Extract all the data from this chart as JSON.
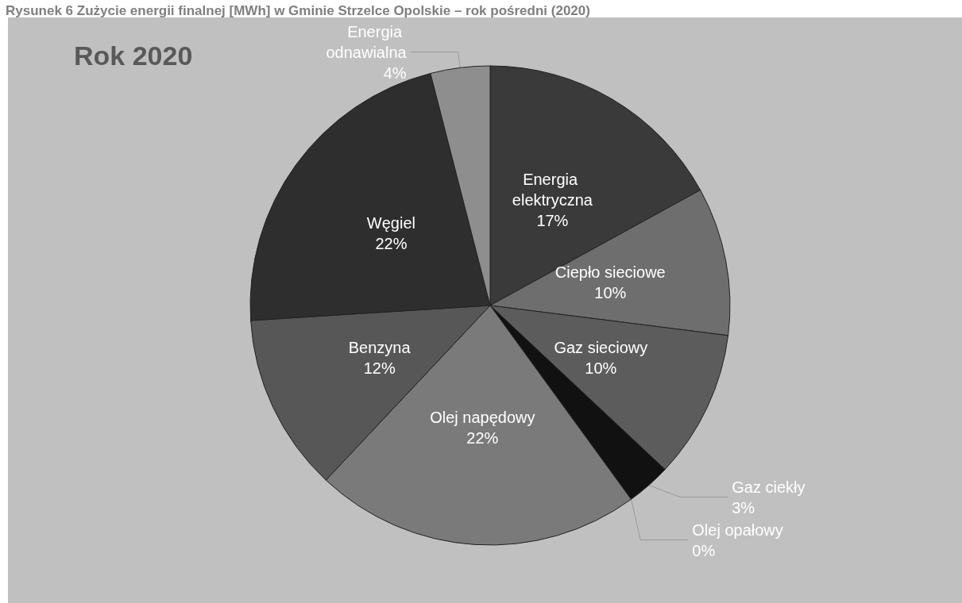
{
  "chart_data": {
    "type": "pie",
    "title": "Rysunek 6 Zużycie energii finalnej [MWh] w Gminie Strzelce Opolskie – rok pośredni (2020)",
    "subtitle": "Rok 2020",
    "categories": [
      "Energia elektryczna",
      "Ciepło sieciowe",
      "Gaz sieciowy",
      "Gaz ciekły",
      "Olej opałowy",
      "Olej napędowy",
      "Benzyna",
      "Węgiel",
      "Energia odnawialna"
    ],
    "values": [
      17,
      10,
      10,
      3,
      0,
      22,
      12,
      22,
      4
    ],
    "value_labels": [
      "17%",
      "10%",
      "10%",
      "3%",
      "0%",
      "22%",
      "12%",
      "22%",
      "4%"
    ],
    "colors": [
      "#3a3a3a",
      "#6e6e6e",
      "#5c5c5c",
      "#111111",
      "#8a8a8a",
      "#7a7a7a",
      "#575757",
      "#2e2e2e",
      "#8e8e8e"
    ],
    "legend": false
  }
}
